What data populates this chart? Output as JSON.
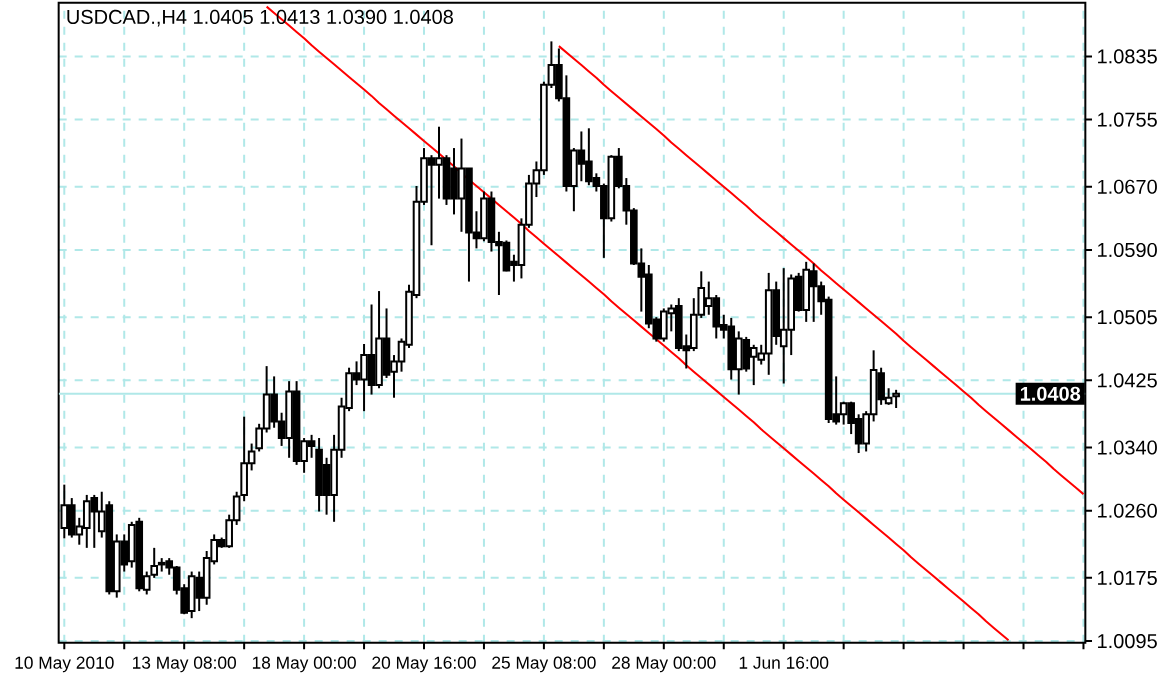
{
  "chart_data": {
    "type": "candlestick",
    "title": "USDCAD.,H4  1.0405 1.0413 1.0390 1.0408",
    "categories": [
      "10 May 2010",
      null,
      null,
      null,
      null,
      null,
      null,
      null,
      null,
      null,
      null,
      null,
      null,
      null,
      null,
      null,
      "13 May 08:00",
      null,
      null,
      null,
      null,
      null,
      null,
      null,
      null,
      null,
      null,
      null,
      null,
      null,
      null,
      null,
      "18 May 00:00",
      null,
      null,
      null,
      null,
      null,
      null,
      null,
      null,
      null,
      null,
      null,
      null,
      null,
      null,
      null,
      "20 May 16:00",
      null,
      null,
      null,
      null,
      null,
      null,
      null,
      null,
      null,
      null,
      null,
      null,
      null,
      null,
      null,
      "25 May 08:00",
      null,
      null,
      null,
      null,
      null,
      null,
      null,
      null,
      null,
      null,
      null,
      null,
      null,
      null,
      null,
      "28 May 00:00",
      null,
      null,
      null,
      null,
      null,
      null,
      null,
      null,
      null,
      null,
      null,
      null,
      null,
      null,
      null,
      "1 Jun 16:00",
      null,
      null,
      null,
      null,
      null,
      null,
      null,
      null,
      null,
      null,
      null,
      null,
      null,
      null,
      null,
      null,
      null,
      null,
      null,
      null,
      null,
      null,
      null,
      null,
      null,
      null,
      null,
      null,
      null,
      null,
      null,
      null,
      null,
      null,
      null,
      null,
      null,
      null,
      null,
      null
    ],
    "ohlc": [
      [
        1.0238,
        1.0293,
        1.0225,
        1.0267
      ],
      [
        1.0267,
        1.0276,
        1.0226,
        1.023
      ],
      [
        1.023,
        1.0251,
        1.0217,
        1.024
      ],
      [
        1.0238,
        1.028,
        1.0213,
        1.0272
      ],
      [
        1.0276,
        1.028,
        1.0213,
        1.0259
      ],
      [
        1.0234,
        1.0284,
        1.0226,
        1.0259
      ],
      [
        1.0267,
        1.0272,
        1.0154,
        1.0158
      ],
      [
        1.0158,
        1.023,
        1.015,
        1.0221
      ],
      [
        1.0221,
        1.023,
        1.0183,
        1.0192
      ],
      [
        1.0196,
        1.0246,
        1.0188,
        1.0242
      ],
      [
        1.0246,
        1.0251,
        1.0158,
        1.0162
      ],
      [
        1.016,
        1.0183,
        1.0154,
        1.0177
      ],
      [
        1.0179,
        1.0213,
        1.0175,
        1.019
      ],
      [
        1.0194,
        1.02,
        1.0183,
        1.0192
      ],
      [
        1.0196,
        1.02,
        1.0179,
        1.0188
      ],
      [
        1.0188,
        1.019,
        1.0154,
        1.016
      ],
      [
        1.0162,
        1.0167,
        1.0129,
        1.0131
      ],
      [
        1.0133,
        1.0183,
        1.0124,
        1.0177
      ],
      [
        1.0175,
        1.0183,
        1.0133,
        1.015
      ],
      [
        1.015,
        1.0209,
        1.0141,
        1.02
      ],
      [
        1.0196,
        1.023,
        1.0192,
        1.0223
      ],
      [
        1.0223,
        1.0226,
        1.0213,
        1.0215
      ],
      [
        1.0215,
        1.0255,
        1.0213,
        1.0248
      ],
      [
        1.0248,
        1.0284,
        1.0242,
        1.0278
      ],
      [
        1.028,
        1.0379,
        1.0272,
        1.032
      ],
      [
        1.032,
        1.0345,
        1.0311,
        1.0335
      ],
      [
        1.0339,
        1.037,
        1.0335,
        1.0364
      ],
      [
        1.0364,
        1.0443,
        1.0359,
        1.0407
      ],
      [
        1.0407,
        1.043,
        1.0365,
        1.0373
      ],
      [
        1.0373,
        1.0384,
        1.0342,
        1.0352
      ],
      [
        1.0352,
        1.0424,
        1.0327,
        1.0411
      ],
      [
        1.0411,
        1.0424,
        1.0318,
        1.0323
      ],
      [
        1.0323,
        1.0352,
        1.0308,
        1.0348
      ],
      [
        1.0348,
        1.0356,
        1.0327,
        1.0342
      ],
      [
        1.0337,
        1.0352,
        1.0259,
        1.028
      ],
      [
        1.0318,
        1.0327,
        1.0255,
        1.028
      ],
      [
        1.028,
        1.0356,
        1.0246,
        1.0337
      ],
      [
        1.0337,
        1.0403,
        1.0327,
        1.0392
      ],
      [
        1.039,
        1.0441,
        1.0386,
        1.0434
      ],
      [
        1.0434,
        1.0449,
        1.0419,
        1.0426
      ],
      [
        1.0426,
        1.0471,
        1.0386,
        1.0457
      ],
      [
        1.0457,
        1.0521,
        1.0407,
        1.0419
      ],
      [
        1.0419,
        1.0538,
        1.0415,
        1.0478
      ],
      [
        1.0478,
        1.0516,
        1.0428,
        1.0432
      ],
      [
        1.0436,
        1.0457,
        1.0403,
        1.0449
      ],
      [
        1.0449,
        1.0478,
        1.0436,
        1.0474
      ],
      [
        1.047,
        1.0546,
        1.0466,
        1.0537
      ],
      [
        1.0533,
        1.0671,
        1.0529,
        1.0651
      ],
      [
        1.0651,
        1.0719,
        1.0647,
        1.0706
      ],
      [
        1.0706,
        1.071,
        1.0596,
        1.0698
      ],
      [
        1.0698,
        1.0746,
        1.0655,
        1.0706
      ],
      [
        1.0706,
        1.071,
        1.0647,
        1.0655
      ],
      [
        1.0693,
        1.0719,
        1.0635,
        1.0655
      ],
      [
        1.0655,
        1.0731,
        1.0613,
        1.0693
      ],
      [
        1.0693,
        1.0693,
        1.055,
        1.0612
      ],
      [
        1.0612,
        1.0639,
        1.0592,
        1.0605
      ],
      [
        1.0605,
        1.0664,
        1.0601,
        1.0655
      ],
      [
        1.0655,
        1.0664,
        1.0588,
        1.06
      ],
      [
        1.06,
        1.0613,
        1.0533,
        1.0596
      ],
      [
        1.0599,
        1.0602,
        1.0563,
        1.0564
      ],
      [
        1.0575,
        1.0584,
        1.055,
        1.0571
      ],
      [
        1.0571,
        1.063,
        1.0554,
        1.0622
      ],
      [
        1.0622,
        1.0685,
        1.0618,
        1.0674
      ],
      [
        1.0674,
        1.0702,
        1.0657,
        1.0691
      ],
      [
        1.0691,
        1.0803,
        1.0685,
        1.0799
      ],
      [
        1.0799,
        1.0854,
        1.0795,
        1.0824
      ],
      [
        1.0824,
        1.0845,
        1.0778,
        1.0782
      ],
      [
        1.0782,
        1.0811,
        1.0664,
        1.0671
      ],
      [
        1.0671,
        1.0719,
        1.0639,
        1.0716
      ],
      [
        1.0716,
        1.074,
        1.0677,
        1.0699
      ],
      [
        1.0702,
        1.0744,
        1.0672,
        1.0677
      ],
      [
        1.0681,
        1.0687,
        1.0664,
        1.0671
      ],
      [
        1.0671,
        1.0674,
        1.058,
        1.063
      ],
      [
        1.063,
        1.071,
        1.0626,
        1.0708
      ],
      [
        1.0708,
        1.0719,
        1.0668,
        1.0671
      ],
      [
        1.0671,
        1.0681,
        1.0622,
        1.064
      ],
      [
        1.064,
        1.0643,
        1.0571,
        1.0573
      ],
      [
        1.0573,
        1.0592,
        1.0512,
        1.0556
      ],
      [
        1.0559,
        1.0571,
        1.0491,
        1.0497
      ],
      [
        1.0502,
        1.0505,
        1.0474,
        1.0478
      ],
      [
        1.0478,
        1.0516,
        1.0474,
        1.0512
      ],
      [
        1.051,
        1.0521,
        1.0487,
        1.0516
      ],
      [
        1.0519,
        1.0529,
        1.0462,
        1.0466
      ],
      [
        1.0468,
        1.0483,
        1.044,
        1.0463
      ],
      [
        1.0466,
        1.0529,
        1.0462,
        1.0508
      ],
      [
        1.0508,
        1.0563,
        1.0504,
        1.0542
      ],
      [
        1.0519,
        1.055,
        1.0508,
        1.0529
      ],
      [
        1.0529,
        1.0533,
        1.0478,
        1.0493
      ],
      [
        1.0495,
        1.0508,
        1.0478,
        1.0489
      ],
      [
        1.0493,
        1.0504,
        1.0426,
        1.0439
      ],
      [
        1.0439,
        1.0487,
        1.0407,
        1.0478
      ],
      [
        1.0476,
        1.048,
        1.0436,
        1.044
      ],
      [
        1.0455,
        1.047,
        1.0419,
        1.0466
      ],
      [
        1.0451,
        1.047,
        1.0445,
        1.0459
      ],
      [
        1.0459,
        1.0561,
        1.0432,
        1.0539
      ],
      [
        1.0539,
        1.055,
        1.047,
        1.0481
      ],
      [
        1.0468,
        1.0567,
        1.0421,
        1.0489
      ],
      [
        1.0489,
        1.0559,
        1.0457,
        1.0554
      ],
      [
        1.0556,
        1.0561,
        1.0512,
        1.0514
      ],
      [
        1.0514,
        1.0575,
        1.0499,
        1.0565
      ],
      [
        1.0563,
        1.0573,
        1.0499,
        1.0544
      ],
      [
        1.0544,
        1.055,
        1.0508,
        1.0525
      ],
      [
        1.0527,
        1.0531,
        1.0371,
        1.0376
      ],
      [
        1.0382,
        1.043,
        1.0369,
        1.0373
      ],
      [
        1.0382,
        1.0398,
        1.0369,
        1.0396
      ],
      [
        1.0396,
        1.0398,
        1.0357,
        1.0371
      ],
      [
        1.0376,
        1.0382,
        1.0333,
        1.0345
      ],
      [
        1.0345,
        1.0386,
        1.0335,
        1.0382
      ],
      [
        1.0382,
        1.0463,
        1.0373,
        1.0438
      ],
      [
        1.0434,
        1.0441,
        1.0394,
        1.0401
      ],
      [
        1.0396,
        1.0415,
        1.0394,
        1.0403
      ],
      [
        1.0405,
        1.0413,
        1.039,
        1.0408
      ],
      null,
      null,
      null,
      null,
      null,
      null,
      null,
      null,
      null,
      null,
      null,
      null,
      null,
      null,
      null,
      null,
      null,
      null,
      null,
      null,
      null,
      null,
      null,
      null,
      null
    ],
    "ylim": [
      1.0093,
      1.0903
    ],
    "yticks": [
      1.0095,
      1.0175,
      {
        "value": 1.026,
        "label": "1.0260"
      },
      {
        "value": 1.034,
        "label": "1.0340"
      },
      1.0425,
      1.0505,
      {
        "value": 1.059,
        "label": "1.0590"
      },
      {
        "value": 1.067,
        "label": "1.0670"
      },
      1.0755,
      1.0835
    ],
    "grid": true,
    "ref_lines": [
      {
        "axis": "y",
        "value": 1.0408,
        "label": "1.0408",
        "color": "#b0e8e8"
      }
    ],
    "series": [
      {
        "type": "line",
        "color": "#ff0000",
        "values": [
          null,
          null,
          null,
          null,
          null,
          null,
          null,
          null,
          null,
          null,
          null,
          null,
          null,
          null,
          null,
          null,
          null,
          null,
          null,
          null,
          null,
          null,
          null,
          null,
          null,
          null,
          null,
          1.0898,
          1.089,
          1.0882,
          1.0874,
          1.0866,
          1.0858,
          1.0849,
          1.0841,
          1.0833,
          1.0825,
          1.0817,
          1.0809,
          1.0801,
          1.0793,
          1.0785,
          1.0776,
          1.0768,
          1.076,
          1.0752,
          1.0744,
          1.0736,
          1.0728,
          1.072,
          1.0712,
          1.0704,
          1.0696,
          1.0687,
          1.0679,
          1.0671,
          1.0663,
          1.0655,
          1.0647,
          1.0639,
          1.0631,
          1.0623,
          1.0614,
          1.0606,
          1.0598,
          1.059,
          1.0582,
          1.0574,
          1.0566,
          1.0558,
          1.055,
          1.0542,
          1.0534,
          1.0525,
          1.0517,
          1.0509,
          1.0501,
          1.0493,
          1.0485,
          1.0477,
          1.0469,
          1.0461,
          1.0453,
          1.0444,
          1.0436,
          1.0428,
          1.042,
          1.0412,
          1.0404,
          1.0396,
          1.0388,
          1.038,
          1.0372,
          1.0363,
          1.0355,
          1.0347,
          1.0339,
          1.0331,
          1.0323,
          1.0315,
          1.0307,
          1.0299,
          1.0291,
          1.0282,
          1.0274,
          1.0266,
          1.0258,
          1.025,
          1.0242,
          1.0234,
          1.0226,
          1.0218,
          1.021,
          1.0201,
          1.0193,
          1.0185,
          1.0177,
          1.0169,
          1.0161,
          1.0153,
          1.0145,
          1.0137,
          1.0129,
          1.012,
          1.0112,
          1.0104,
          1.0096,
          null,
          null,
          null,
          null,
          null,
          null,
          null,
          null,
          null,
          null
        ]
      },
      {
        "type": "line",
        "color": "#ff0000",
        "values": [
          null,
          null,
          null,
          null,
          null,
          null,
          null,
          null,
          null,
          null,
          null,
          null,
          null,
          null,
          null,
          null,
          null,
          null,
          null,
          null,
          null,
          null,
          null,
          null,
          null,
          null,
          null,
          null,
          null,
          null,
          null,
          null,
          null,
          null,
          null,
          null,
          null,
          null,
          null,
          null,
          null,
          null,
          null,
          null,
          null,
          null,
          null,
          null,
          null,
          null,
          null,
          null,
          null,
          null,
          null,
          null,
          null,
          null,
          null,
          null,
          null,
          null,
          null,
          null,
          null,
          null,
          1.0848,
          1.084,
          1.0832,
          1.0824,
          1.0816,
          1.0808,
          1.0799,
          1.0791,
          1.0783,
          1.0775,
          1.0767,
          1.0759,
          1.0751,
          1.0743,
          1.0735,
          1.0726,
          1.0718,
          1.071,
          1.0702,
          1.0694,
          1.0686,
          1.0678,
          1.067,
          1.0662,
          1.0654,
          1.0646,
          1.0637,
          1.0629,
          1.0621,
          1.0613,
          1.0605,
          1.0597,
          1.0589,
          1.0581,
          1.0573,
          1.0564,
          1.0556,
          1.0548,
          1.054,
          1.0532,
          1.0524,
          1.0516,
          1.0508,
          1.05,
          1.0492,
          1.0484,
          1.0475,
          1.0467,
          1.0459,
          1.0451,
          1.0443,
          1.0435,
          1.0427,
          1.0419,
          1.0411,
          1.0403,
          1.0394,
          1.0386,
          1.0378,
          1.037,
          1.0362,
          1.0354,
          1.0346,
          1.0338,
          1.033,
          1.0322,
          1.0313,
          1.0305,
          1.0297,
          1.0289,
          1.0281
        ]
      }
    ]
  }
}
